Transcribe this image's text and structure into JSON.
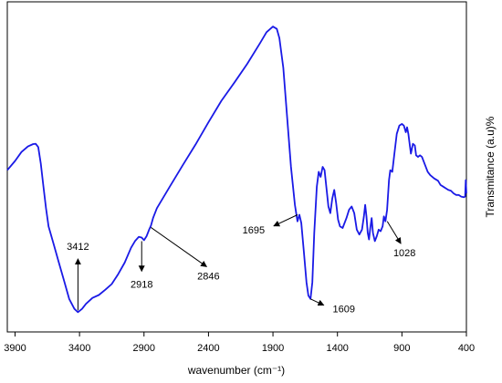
{
  "chart_data": {
    "type": "line",
    "title": "",
    "xlabel": "wavenumber (cm⁻¹)",
    "ylabel": "Transmitance (a.u)%",
    "xlim": [
      3960,
      400
    ],
    "x_reversed": true,
    "ylim": [
      0,
      100
    ],
    "grid": false,
    "legend": "none",
    "x_ticks": [
      "3900",
      "3400",
      "2900",
      "2400",
      "1900",
      "1400",
      "900",
      "400"
    ],
    "line_color": "#1a1ae6",
    "series": [
      {
        "values": [
          [
            3960,
            49.0
          ],
          [
            3900,
            51.8
          ],
          [
            3850,
            54.5
          ],
          [
            3800,
            56.2
          ],
          [
            3760,
            56.9
          ],
          [
            3740,
            57.0
          ],
          [
            3720,
            56.0
          ],
          [
            3700,
            51.0
          ],
          [
            3680,
            44.0
          ],
          [
            3660,
            37.5
          ],
          [
            3640,
            32.0
          ],
          [
            3600,
            26.5
          ],
          [
            3560,
            21.0
          ],
          [
            3520,
            15.5
          ],
          [
            3480,
            10.0
          ],
          [
            3440,
            7.0
          ],
          [
            3412,
            6.0
          ],
          [
            3380,
            7.0
          ],
          [
            3350,
            8.5
          ],
          [
            3300,
            10.3
          ],
          [
            3250,
            11.2
          ],
          [
            3200,
            12.8
          ],
          [
            3150,
            14.5
          ],
          [
            3100,
            17.5
          ],
          [
            3050,
            21.0
          ],
          [
            3000,
            25.5
          ],
          [
            2970,
            27.5
          ],
          [
            2940,
            28.8
          ],
          [
            2918,
            28.6
          ],
          [
            2900,
            27.8
          ],
          [
            2880,
            29.0
          ],
          [
            2860,
            31.0
          ],
          [
            2846,
            32.2
          ],
          [
            2830,
            34.5
          ],
          [
            2800,
            37.5
          ],
          [
            2700,
            44.0
          ],
          [
            2600,
            50.5
          ],
          [
            2500,
            56.8
          ],
          [
            2400,
            63.5
          ],
          [
            2300,
            70.0
          ],
          [
            2200,
            75.5
          ],
          [
            2100,
            81.2
          ],
          [
            2000,
            87.5
          ],
          [
            1950,
            90.8
          ],
          [
            1900,
            92.5
          ],
          [
            1870,
            91.8
          ],
          [
            1850,
            89.0
          ],
          [
            1820,
            80.0
          ],
          [
            1790,
            65.0
          ],
          [
            1760,
            50.0
          ],
          [
            1730,
            38.5
          ],
          [
            1710,
            33.5
          ],
          [
            1695,
            35.5
          ],
          [
            1680,
            33.0
          ],
          [
            1660,
            24.0
          ],
          [
            1640,
            15.0
          ],
          [
            1625,
            11.0
          ],
          [
            1609,
            10.0
          ],
          [
            1595,
            15.0
          ],
          [
            1580,
            30.0
          ],
          [
            1560,
            44.0
          ],
          [
            1545,
            48.5
          ],
          [
            1530,
            47.0
          ],
          [
            1515,
            50.0
          ],
          [
            1500,
            49.0
          ],
          [
            1485,
            43.5
          ],
          [
            1470,
            38.0
          ],
          [
            1455,
            36.0
          ],
          [
            1440,
            40.5
          ],
          [
            1425,
            43.0
          ],
          [
            1410,
            39.0
          ],
          [
            1395,
            34.0
          ],
          [
            1380,
            32.0
          ],
          [
            1360,
            31.5
          ],
          [
            1330,
            34.5
          ],
          [
            1310,
            37.0
          ],
          [
            1290,
            38.0
          ],
          [
            1270,
            36.0
          ],
          [
            1250,
            31.0
          ],
          [
            1230,
            29.5
          ],
          [
            1210,
            31.0
          ],
          [
            1195,
            35.0
          ],
          [
            1185,
            38.5
          ],
          [
            1175,
            35.0
          ],
          [
            1165,
            30.0
          ],
          [
            1155,
            28.0
          ],
          [
            1145,
            31.5
          ],
          [
            1135,
            34.5
          ],
          [
            1125,
            30.0
          ],
          [
            1110,
            27.5
          ],
          [
            1095,
            29.0
          ],
          [
            1080,
            31.0
          ],
          [
            1065,
            30.5
          ],
          [
            1050,
            32.0
          ],
          [
            1040,
            35.0
          ],
          [
            1028,
            33.5
          ],
          [
            1015,
            37.0
          ],
          [
            1000,
            46.0
          ],
          [
            990,
            49.0
          ],
          [
            975,
            48.5
          ],
          [
            960,
            53.5
          ],
          [
            940,
            60.0
          ],
          [
            920,
            62.5
          ],
          [
            900,
            63.0
          ],
          [
            885,
            62.5
          ],
          [
            870,
            60.5
          ],
          [
            860,
            62.0
          ],
          [
            850,
            60.0
          ],
          [
            840,
            57.0
          ],
          [
            830,
            54.0
          ],
          [
            815,
            57.0
          ],
          [
            800,
            56.5
          ],
          [
            790,
            53.5
          ],
          [
            775,
            53.0
          ],
          [
            760,
            53.5
          ],
          [
            745,
            53.0
          ],
          [
            720,
            50.5
          ],
          [
            700,
            48.5
          ],
          [
            680,
            47.5
          ],
          [
            650,
            46.5
          ],
          [
            620,
            45.8
          ],
          [
            600,
            44.5
          ],
          [
            580,
            44.0
          ],
          [
            560,
            43.5
          ],
          [
            540,
            43.0
          ],
          [
            520,
            42.8
          ],
          [
            500,
            42.0
          ],
          [
            480,
            41.5
          ],
          [
            460,
            41.5
          ],
          [
            440,
            41.0
          ],
          [
            420,
            40.8
          ],
          [
            410,
            41.0
          ],
          [
            405,
            46.0
          ],
          [
            400,
            42.0
          ]
        ]
      }
    ],
    "annotations": [
      {
        "text": "3412",
        "x": 3412,
        "y": 6.0,
        "label_x": 3412,
        "label_y": 26.0
      },
      {
        "text": "2918",
        "x": 2918,
        "y": 28.6,
        "label_x": 2918,
        "label_y": 14.5
      },
      {
        "text": "2846",
        "x": 2846,
        "y": 32.2,
        "label_x": 2400,
        "label_y": 17.0
      },
      {
        "text": "1695",
        "x": 1695,
        "y": 35.5,
        "label_x": 2050,
        "label_y": 31.0
      },
      {
        "text": "1609",
        "x": 1609,
        "y": 10.0,
        "label_x": 1350,
        "label_y": 7.0
      },
      {
        "text": "1028",
        "x": 1028,
        "y": 33.5,
        "label_x": 880,
        "label_y": 24.0
      }
    ]
  }
}
